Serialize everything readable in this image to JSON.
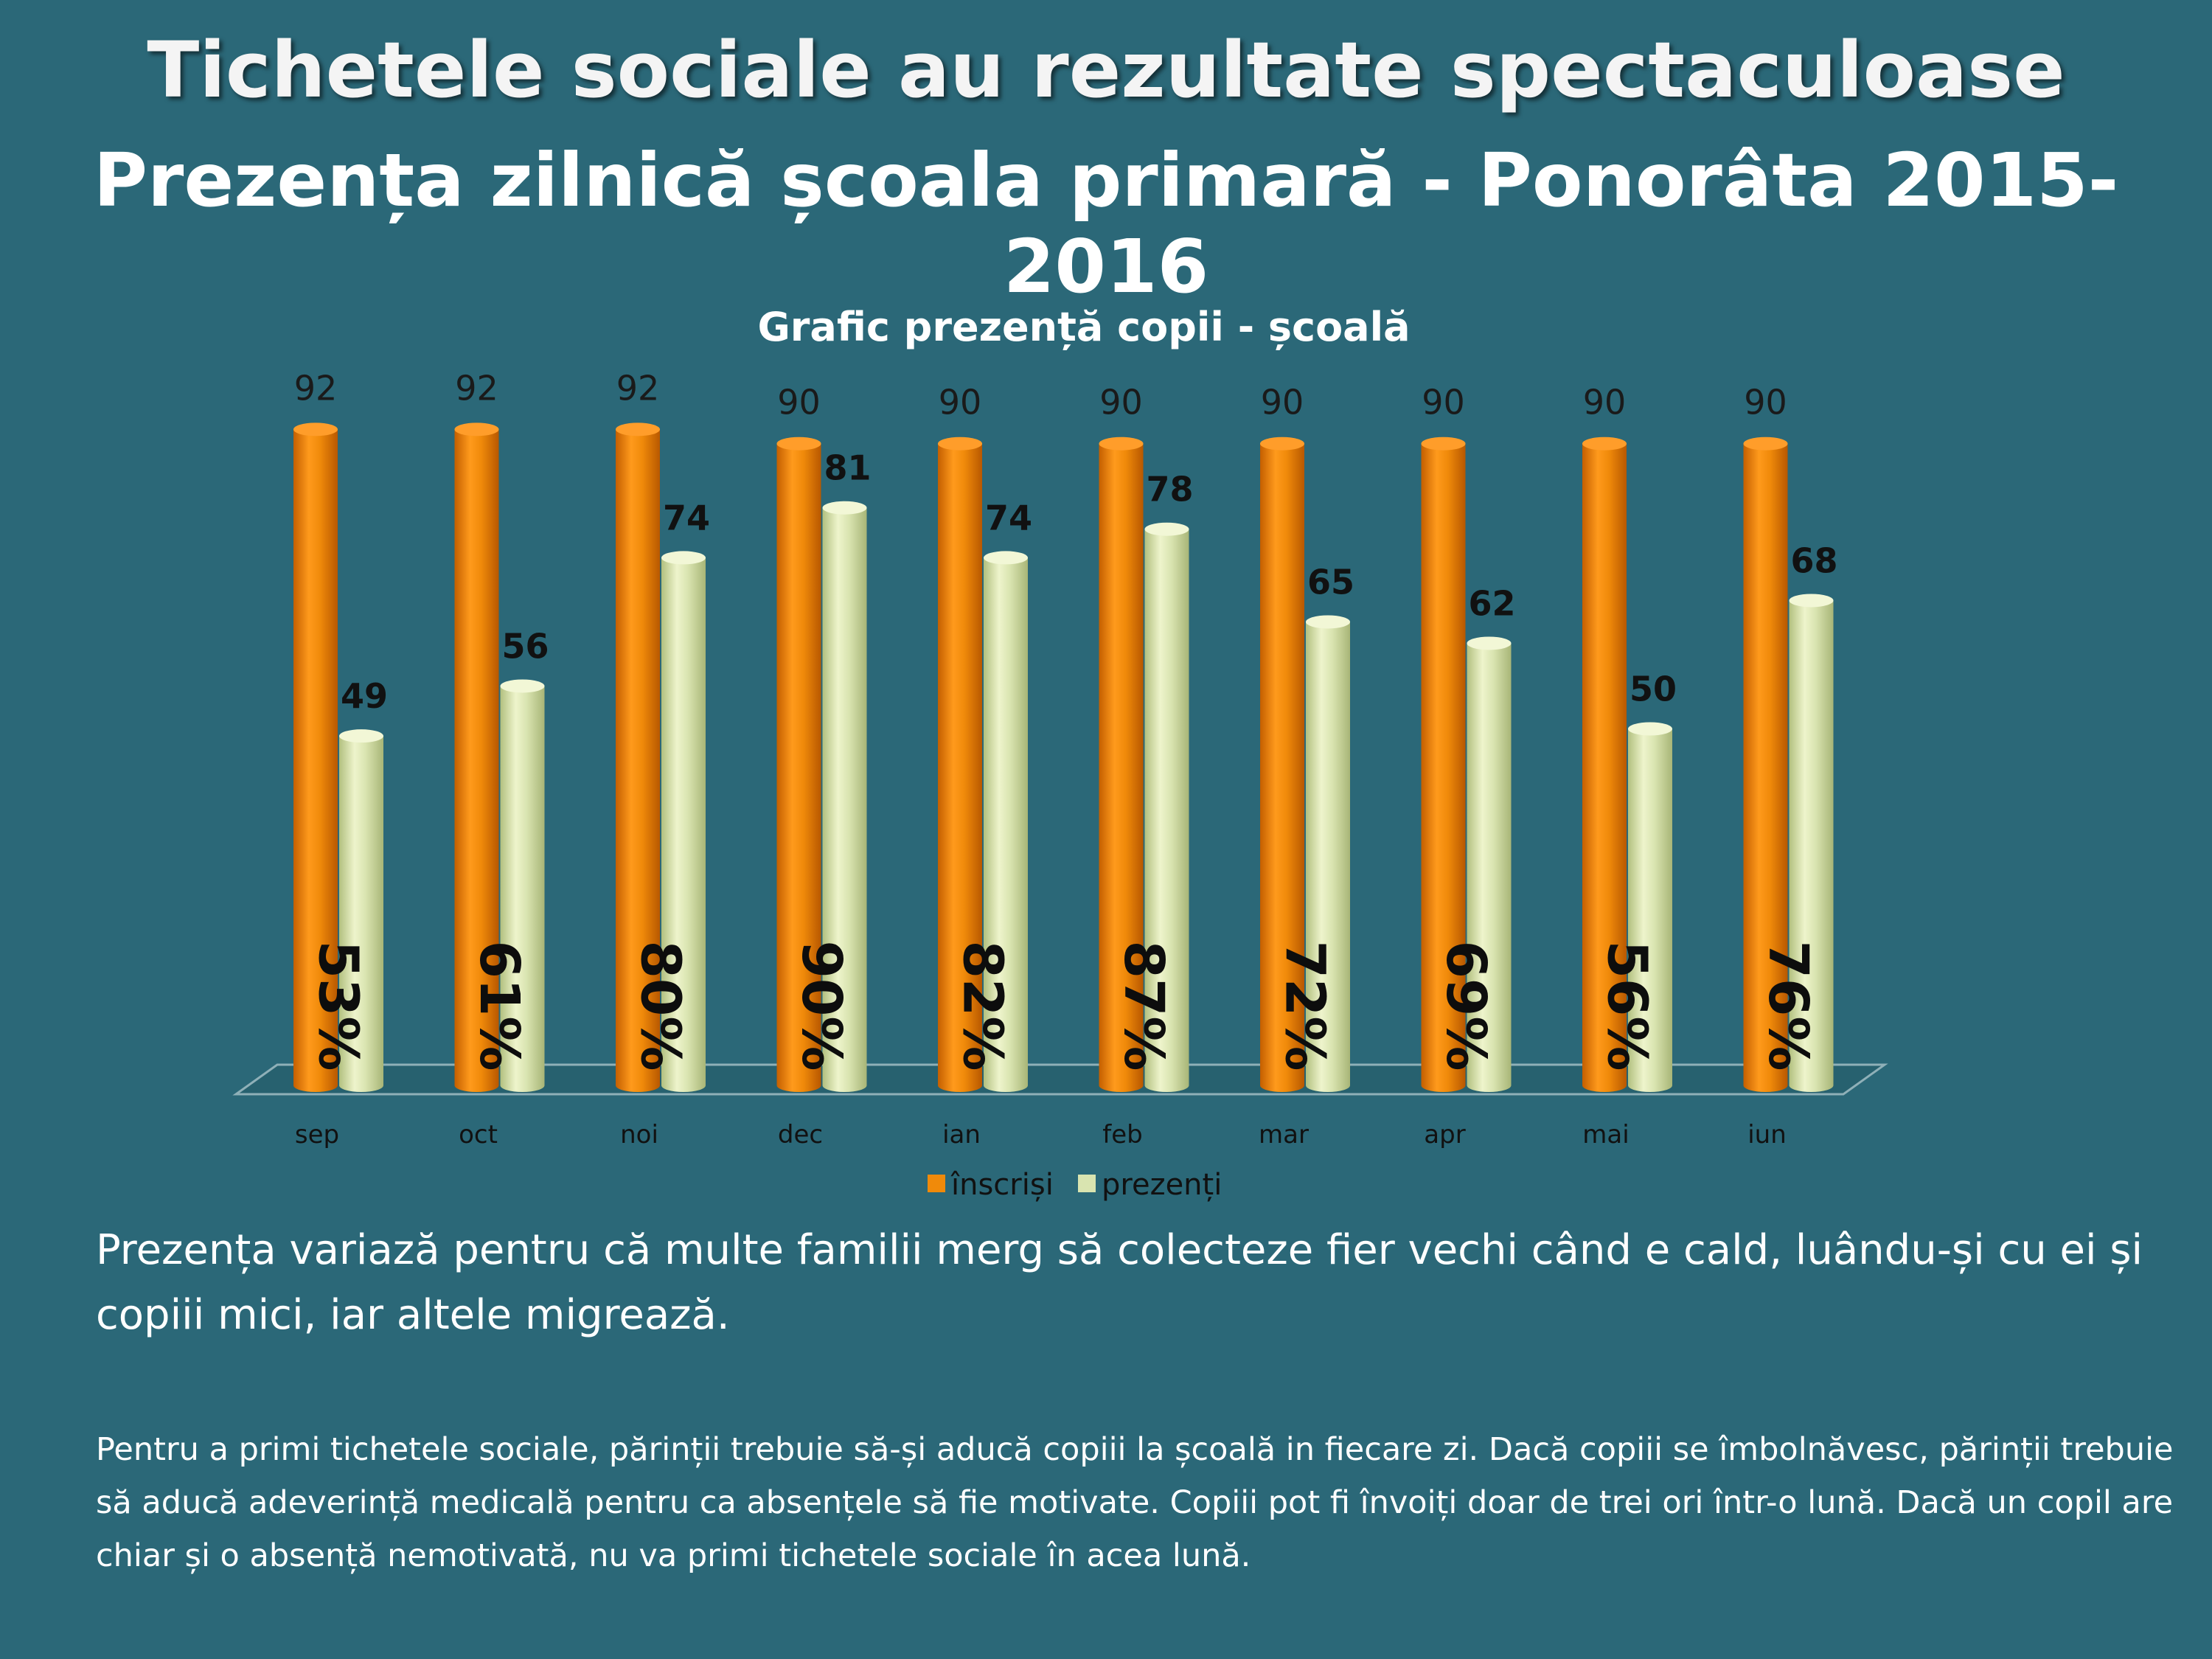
{
  "heading": "Tichetele sociale au rezultate spectaculoase",
  "subheading": "Prezența zilnică școala primară - Ponorâta 2015-2016",
  "colors": {
    "background": "#2b6878",
    "inscrisi": "#f08a0a",
    "prezenti": "#d9e4b0"
  },
  "chart_data": {
    "type": "bar",
    "title": "Grafic prezență copii - școală",
    "categories": [
      "sep",
      "oct",
      "noi",
      "dec",
      "ian",
      "feb",
      "mar",
      "apr",
      "mai",
      "iun"
    ],
    "series": [
      {
        "name": "înscriși",
        "values": [
          92,
          92,
          92,
          90,
          90,
          90,
          90,
          90,
          90,
          90
        ]
      },
      {
        "name": "prezenți",
        "values": [
          49,
          56,
          74,
          81,
          74,
          78,
          65,
          62,
          50,
          68
        ]
      }
    ],
    "percent_labels": [
      "53%",
      "61%",
      "80%",
      "90%",
      "82%",
      "87%",
      "72%",
      "69%",
      "56%",
      "76%"
    ],
    "ylim": [
      0,
      100
    ],
    "grid": false,
    "legend": "bottom"
  },
  "note_main": "Prezența variază pentru că multe familii merg să colecteze fier vechi când e cald, luându-și cu ei și copiii mici, iar altele migrează.",
  "note_small": "Pentru a primi tichetele sociale, părinții trebuie să-și aducă copiii la școală in fiecare zi. Dacă copiii se îmbolnăvesc, părinții trebuie să aducă adeverință medicală pentru ca absențele să fie motivate. Copiii pot fi învoiți  doar de trei ori într-o lună. Dacă un copil are chiar și o absență nemotivată, nu va primi tichetele sociale în acea lună."
}
